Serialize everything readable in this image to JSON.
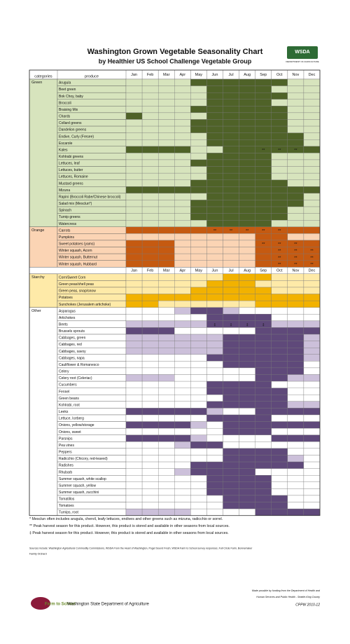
{
  "header": {
    "title": "Washington Grown Vegetable Seasonality Chart",
    "subtitle": "by Healthier US School Challenge Vegetable Group",
    "logo": "WSDA",
    "logo_sub": "DEPARTMENT OF AGRICULTURE"
  },
  "table": {
    "columns": [
      "categories",
      "produce"
    ],
    "months": [
      "Jan",
      "Feb",
      "Mar",
      "Apr",
      "May",
      "Jun",
      "Jul",
      "Aug",
      "Sep",
      "Oct",
      "Nov",
      "Dec"
    ],
    "groups": [
      {
        "category": "Green",
        "light": "#d7e4bd",
        "dark": "#4f6228",
        "rows": [
          {
            "produce": "Arugula",
            "season": "llllddddddll"
          },
          {
            "produce": "Beet green",
            "season": "lllllddddlll"
          },
          {
            "produce": "Bok Choy, baby",
            "season": "llllldddddll"
          },
          {
            "produce": "Broccoli",
            "season": "lllllddddlll"
          },
          {
            "produce": "Braising Mix",
            "season": "llllddddddll"
          },
          {
            "produce": "Chards",
            "season": "dlllldddddll"
          },
          {
            "produce": "Collard greens",
            "season": "llllddddddll"
          },
          {
            "produce": "Dandelion greens",
            "season": "llllddddddll"
          },
          {
            "produce": "Endive, Curly (Fresee)",
            "season": "lllllddddddl"
          },
          {
            "produce": "Escarole",
            "season": "lllllddddddl"
          },
          {
            "produce": "Kales",
            "season": "ddddlldddddd",
            "marks": [
              null,
              null,
              null,
              null,
              null,
              null,
              null,
              null,
              "**",
              "**",
              "**",
              null
            ]
          },
          {
            "produce": "Kohlrabi greens",
            "season": "lllllddddlll"
          },
          {
            "produce": "Lettuces, leaf",
            "season": "lllldddddlll"
          },
          {
            "produce": "Lettuces, butter",
            "season": "lllllddddlll"
          },
          {
            "produce": "Lettuces, Romaine",
            "season": "lllllddddlll"
          },
          {
            "produce": "Mustard greens",
            "season": "llllddddddll"
          },
          {
            "produce": "Mizuna",
            "season": "dddddddddddd"
          },
          {
            "produce": "Rapini (Broccoli Rabe/Chinese broccoli)",
            "season": "lllllddddddl"
          },
          {
            "produce": "Salad mix (Mesclun*)",
            "season": "lllldddddddl"
          },
          {
            "produce": "Spinach",
            "season": "llllddddddll"
          },
          {
            "produce": "Turnip greens",
            "season": "llllddddddll"
          },
          {
            "produce": "Watercress",
            "season": "lllllddddlll"
          }
        ]
      },
      {
        "category": "Orange",
        "light": "#fbd4b4",
        "dark": "#c55a11",
        "rows": [
          {
            "produce": "Carrots",
            "season": "dddddddddddd",
            "marks": [
              null,
              null,
              null,
              null,
              null,
              "**",
              "**",
              "**",
              "**",
              "**",
              null,
              null
            ]
          },
          {
            "produce": "Pumpkins",
            "season": "llllllllddll"
          },
          {
            "produce": "Sweet potatoes (yams)",
            "season": "dddllllldddd",
            "marks": [
              null,
              null,
              null,
              null,
              null,
              null,
              null,
              null,
              "**",
              "**",
              "**",
              null
            ]
          },
          {
            "produce": "Winter squash, Acorn",
            "season": "dddllllldddd",
            "marks": [
              null,
              null,
              null,
              null,
              null,
              null,
              null,
              null,
              null,
              "**",
              "**",
              "**"
            ]
          },
          {
            "produce": "Winter squash, Butternut",
            "season": "dddllllldddd",
            "marks": [
              null,
              null,
              null,
              null,
              null,
              null,
              null,
              null,
              null,
              "**",
              "**",
              "**"
            ]
          },
          {
            "produce": "Winter squash, Hubbard",
            "season": "dddllllldddd",
            "marks": [
              null,
              null,
              null,
              null,
              null,
              null,
              null,
              null,
              null,
              "**",
              "**",
              "**"
            ]
          }
        ]
      },
      {
        "category": "Starchy",
        "light": "#feeaa8",
        "dark": "#f2b200",
        "repeat_months": true,
        "rows": [
          {
            "produce": "Corn/Sweet Corn",
            "season": "lllllldddlll"
          },
          {
            "produce": "Green peas/shell peas",
            "season": "llllldddllll"
          },
          {
            "produce": "Green peas, snap/snow",
            "season": "lllldddddlll"
          },
          {
            "produce": "Potatoes",
            "season": "dddddddddddd"
          },
          {
            "produce": "Sunchokes (Jerusalem artichoke)",
            "season": "ddlllllldddd"
          }
        ]
      },
      {
        "category": "Other",
        "light": "#ccc0da",
        "dark": "#5f497a",
        "plain": true,
        "rows": [
          {
            "produce": "Asparagus",
            "season": "000lddl00000"
          },
          {
            "produce": "Artichokes",
            "season": "00000dddd000"
          },
          {
            "produce": "Beets",
            "season": "lllllddddlll",
            "marks": [
              null,
              null,
              null,
              null,
              null,
              "‡",
              "‡",
              "‡",
              "‡",
              null,
              null,
              null
            ]
          },
          {
            "produce": "Brussels sprouts",
            "season": "ddd00000dddd"
          },
          {
            "produce": "Cabbages, green",
            "season": "lllllldddddl"
          },
          {
            "produce": "Cabbages, red",
            "season": "lllllldddddl"
          },
          {
            "produce": "Cabbages, savoy",
            "season": "lllllldddddl"
          },
          {
            "produce": "Cabbages, napa",
            "season": "00000ddddddl"
          },
          {
            "produce": "Cauliflower & Romanesco",
            "season": "000000ddddd0"
          },
          {
            "produce": "Celery",
            "season": "00000000ddd0"
          },
          {
            "produce": "Celery root (Celeriac)",
            "season": "lll00000ddll"
          },
          {
            "produce": "Cucumbers",
            "season": "00000dddd000"
          },
          {
            "produce": "Fennel",
            "season": "00000ddddd00"
          },
          {
            "produce": "Green beans",
            "season": "000000dddd00"
          },
          {
            "produce": "Kohlrabi, root",
            "season": "00000dddddll"
          },
          {
            "produce": "Leeks",
            "season": "dddddl00dddd"
          },
          {
            "produce": "Lettuce, Iceberg",
            "season": "00000dddd000"
          },
          {
            "produce": "Onions, yellow/storage",
            "season": "ddddl0dddddd"
          },
          {
            "produce": "Onions, sweet",
            "season": "000000ddd000"
          },
          {
            "produce": "Parsnips",
            "season": "ddddl0000ddd"
          },
          {
            "produce": "Pea vines",
            "season": "000ldd000000"
          },
          {
            "produce": "Peppers",
            "season": "000000dddd00"
          },
          {
            "produce": "Radicchio (Chicory, red-leaved)",
            "season": "000000ddddl0"
          },
          {
            "produce": "Radishes",
            "season": "0000ddddddd0"
          },
          {
            "produce": "Rhubarb",
            "season": "000ldddd0000"
          },
          {
            "produce": "Summer squash, white scallop",
            "season": "00000dddd000"
          },
          {
            "produce": "Summer squash, yellow",
            "season": "00000dddd000"
          },
          {
            "produce": "Summer squash, zucchini",
            "season": "00000dddd000"
          },
          {
            "produce": "Tomatillos",
            "season": "000000dddd00"
          },
          {
            "produce": "Tomatoes",
            "season": "000000dddd00"
          },
          {
            "produce": "Turnips, root",
            "season": "llll0000dddd"
          }
        ]
      }
    ]
  },
  "footnotes": [
    "* Mesclun often includes arugula, chervil, leafy lettuces, endives and other greens such as mizuna, radicchio or sorrel.",
    "** Peak harvest season for this product. However, this product is stored and available in other seasons from local sources.",
    "‡ Peak harvest season for this product. However, this product is stored and available in other seasons from local sources."
  ],
  "sources": [
    "Sources include: Washington Agricultural Commodity Commissions, WSDA From the Heart of Washington, Puget Sound Fresh, WSDA Farm to School survey responses, Full Circle Farm, Bonnemaker",
    "Family Orchard"
  ],
  "footer": {
    "logo": "Farm to School",
    "agency": "Washington State Department of Agriculture",
    "funding": [
      "Made possible by funding from the Department of Health and",
      "Human Services and Public Health - Seattle-King County"
    ],
    "code": "CPPW 2010-12"
  }
}
